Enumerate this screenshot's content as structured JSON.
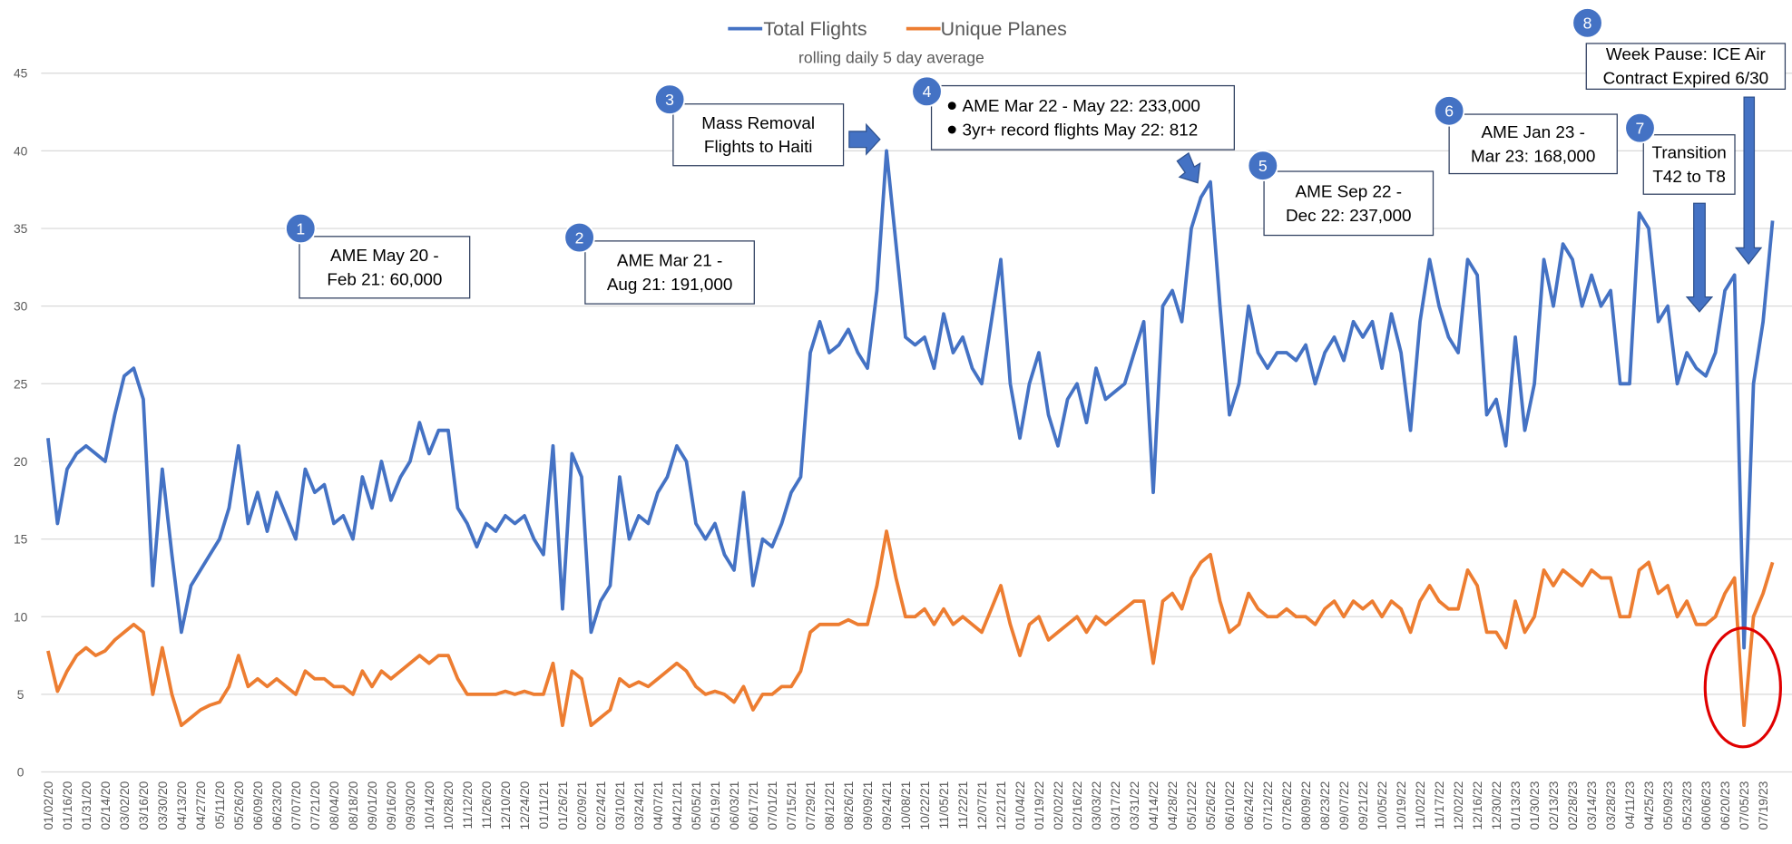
{
  "chart_data": {
    "type": "line",
    "subtitle": "rolling daily 5 day average",
    "categories": [
      "01/02/20",
      null,
      "01/16/20",
      null,
      "01/31/20",
      null,
      "02/14/20",
      null,
      "03/02/20",
      null,
      "03/16/20",
      null,
      "03/30/20",
      null,
      "04/13/20",
      null,
      "04/27/20",
      null,
      "05/11/20",
      null,
      "05/26/20",
      null,
      "06/09/20",
      null,
      "06/23/20",
      null,
      "07/07/20",
      null,
      "07/21/20",
      null,
      "08/04/20",
      null,
      "08/18/20",
      null,
      "09/01/20",
      null,
      "09/16/20",
      null,
      "09/30/20",
      null,
      "10/14/20",
      null,
      "10/28/20",
      null,
      "11/12/20",
      null,
      "11/26/20",
      null,
      "12/10/20",
      null,
      "12/24/20",
      null,
      "01/11/21",
      null,
      "01/26/21",
      null,
      "02/09/21",
      null,
      "02/24/21",
      null,
      "03/10/21",
      null,
      "03/24/21",
      null,
      "04/07/21",
      null,
      "04/21/21",
      null,
      "05/05/21",
      null,
      "05/19/21",
      null,
      "06/03/21",
      null,
      "06/17/21",
      null,
      "07/01/21",
      null,
      "07/15/21",
      null,
      "07/29/21",
      null,
      "08/12/21",
      null,
      "08/26/21",
      null,
      "09/09/21",
      null,
      "09/24/21",
      null,
      "10/08/21",
      null,
      "10/22/21",
      null,
      "11/05/21",
      null,
      "11/22/21",
      null,
      "12/07/21",
      null,
      "12/21/21",
      null,
      "01/04/22",
      null,
      "01/19/22",
      null,
      "02/02/22",
      null,
      "02/16/22",
      null,
      "03/03/22",
      null,
      "03/17/22",
      null,
      "03/31/22",
      null,
      "04/14/22",
      null,
      "04/28/22",
      null,
      "05/12/22",
      null,
      "05/26/22",
      null,
      "06/10/22",
      null,
      "06/24/22",
      null,
      "07/12/22",
      null,
      "07/26/22",
      null,
      "08/09/22",
      null,
      "08/23/22",
      null,
      "09/07/22",
      null,
      "09/21/22",
      null,
      "10/05/22",
      null,
      "10/19/22",
      null,
      "11/02/22",
      null,
      "11/17/22",
      null,
      "12/02/22",
      null,
      "12/16/22",
      null,
      "12/30/22",
      null,
      "01/13/23",
      null,
      "01/30/23",
      null,
      "02/13/23",
      null,
      "02/28/23",
      null,
      "03/14/23",
      null,
      "03/28/23",
      null,
      "04/11/23",
      null,
      "04/25/23",
      null,
      "05/09/23",
      null,
      "05/23/23",
      null,
      "06/06/23",
      null,
      "06/20/23",
      null,
      "07/05/23",
      null,
      "07/19/23",
      null
    ],
    "series": [
      {
        "name": "Total Flights",
        "color": "#4472c4",
        "values": [
          21.5,
          16,
          19.5,
          20.5,
          21,
          20.5,
          20,
          23,
          25.5,
          26,
          24,
          12,
          19.5,
          14,
          9,
          12,
          13,
          14,
          15,
          17,
          21,
          16,
          18,
          15.5,
          18,
          16.5,
          15,
          19.5,
          18,
          18.5,
          16,
          16.5,
          15,
          19,
          17,
          20,
          17.5,
          19,
          20,
          22.5,
          20.5,
          22,
          22,
          17,
          16,
          14.5,
          16,
          15.5,
          16.5,
          16,
          16.5,
          15,
          14,
          21,
          10.5,
          20.5,
          19,
          9,
          11,
          12,
          19,
          15,
          16.5,
          16,
          18,
          19,
          21,
          20,
          16,
          15,
          16,
          14,
          13,
          18,
          12,
          15,
          14.5,
          16,
          18,
          19,
          27,
          29,
          27,
          27.5,
          28.5,
          27,
          26,
          31,
          40,
          34,
          28,
          27.5,
          28,
          26,
          29.5,
          27,
          28,
          26,
          25,
          29,
          33,
          25,
          21.5,
          25,
          27,
          23,
          21,
          24,
          25,
          22.5,
          26,
          24,
          24.5,
          25,
          27,
          29,
          18,
          30,
          31,
          29,
          35,
          37,
          38,
          30,
          23,
          25,
          30,
          27,
          26,
          27,
          27,
          26.5,
          27.5,
          25,
          27,
          28,
          26.5,
          29,
          28,
          29,
          26,
          29.5,
          27,
          22,
          29,
          33,
          30,
          28,
          27,
          33,
          32,
          23,
          24,
          21,
          28,
          22,
          25,
          33,
          30,
          34,
          33,
          30,
          32,
          30,
          31,
          25,
          25,
          36,
          35,
          29,
          30,
          25,
          27,
          26,
          25.5,
          27,
          31,
          32,
          8,
          25,
          29,
          35.5
        ]
      },
      {
        "name": "Unique Planes",
        "color": "#ed7d31",
        "values": [
          7.8,
          5.2,
          6.5,
          7.5,
          8,
          7.5,
          7.8,
          8.5,
          9,
          9.5,
          9,
          5,
          8,
          5,
          3,
          3.5,
          4,
          4.3,
          4.5,
          5.5,
          7.5,
          5.5,
          6,
          5.5,
          6,
          5.5,
          5,
          6.5,
          6,
          6,
          5.5,
          5.5,
          5,
          6.5,
          5.5,
          6.5,
          6,
          6.5,
          7,
          7.5,
          7,
          7.5,
          7.5,
          6,
          5,
          5,
          5,
          5,
          5.2,
          5,
          5.2,
          5,
          5,
          7,
          3,
          6.5,
          6,
          3,
          3.5,
          4,
          6,
          5.5,
          5.8,
          5.5,
          6,
          6.5,
          7,
          6.5,
          5.5,
          5,
          5.2,
          5,
          4.5,
          5.5,
          4,
          5,
          5,
          5.5,
          5.5,
          6.5,
          9,
          9.5,
          9.5,
          9.5,
          9.8,
          9.5,
          9.5,
          12,
          15.5,
          12.5,
          10,
          10,
          10.5,
          9.5,
          10.5,
          9.5,
          10,
          9.5,
          9,
          10.5,
          12,
          9.5,
          7.5,
          9.5,
          10,
          8.5,
          9,
          9.5,
          10,
          9,
          10,
          9.5,
          10,
          10.5,
          11,
          11,
          7,
          11,
          11.5,
          10.5,
          12.5,
          13.5,
          14,
          11,
          9,
          9.5,
          11.5,
          10.5,
          10,
          10,
          10.5,
          10,
          10,
          9.5,
          10.5,
          11,
          10,
          11,
          10.5,
          11,
          10,
          11,
          10.5,
          9,
          11,
          12,
          11,
          10.5,
          10.5,
          13,
          12,
          9,
          9,
          8,
          11,
          9,
          10,
          13,
          12,
          13,
          12.5,
          12,
          13,
          12.5,
          12.5,
          10,
          10,
          13,
          13.5,
          11.5,
          12,
          10,
          11,
          9.5,
          9.5,
          10,
          11.5,
          12.5,
          3,
          10,
          11.5,
          13.5
        ]
      }
    ],
    "ylim": [
      0,
      45
    ],
    "yticks": [
      0,
      5,
      10,
      15,
      20,
      25,
      30,
      35,
      40,
      45
    ],
    "grid": true,
    "legend": "top",
    "annotations": [
      {
        "number": 1,
        "lines": [
          "AME May 20 -",
          "Feb 21: 60,000"
        ]
      },
      {
        "number": 2,
        "lines": [
          "AME Mar 21 -",
          "Aug 21: 191,000"
        ]
      },
      {
        "number": 3,
        "lines": [
          "Mass Removal",
          "Flights to Haiti"
        ]
      },
      {
        "number": 4,
        "lines": [
          "AME Mar 22 - May 22: 233,000",
          "3yr+ record flights May 22: 812"
        ]
      },
      {
        "number": 5,
        "lines": [
          "AME Sep 22 -",
          "Dec 22: 237,000"
        ]
      },
      {
        "number": 6,
        "lines": [
          "AME Jan 23 -",
          "Mar 23: 168,000"
        ]
      },
      {
        "number": 7,
        "lines": [
          "Transition",
          "T42 to T8"
        ]
      },
      {
        "number": 8,
        "lines": [
          "Week Pause: ICE Air",
          "Contract Expired 6/30"
        ]
      }
    ]
  }
}
